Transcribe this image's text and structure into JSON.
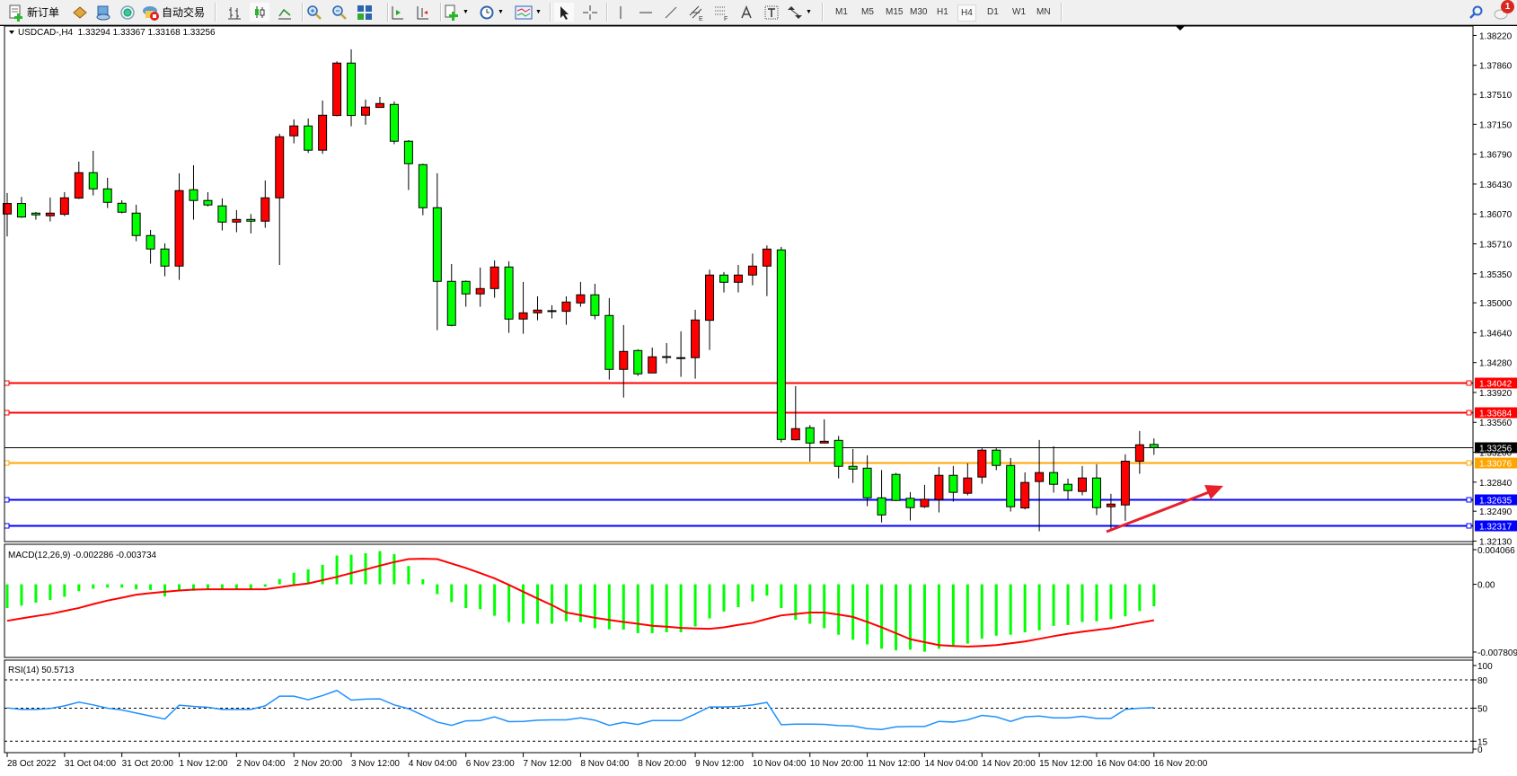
{
  "toolbar": {
    "new_order_label": "新订单",
    "auto_trading_label": "自动交易",
    "icons": [
      "new-order-icon",
      "market-watch-icon",
      "data-window-icon",
      "navigator-signal-icon",
      "auto-trading-icon",
      "bar-chart-icon",
      "candlestick-icon",
      "line-chart-icon",
      "zoom-in-icon",
      "zoom-out-icon",
      "tile-windows-icon",
      "auto-scroll-icon",
      "chart-shift-icon",
      "indicators-icon",
      "periods-icon",
      "templates-icon",
      "cursor-icon",
      "crosshair-icon",
      "vertical-line-icon",
      "horizontal-line-icon",
      "trendline-icon",
      "equidistant-channel-icon",
      "fibonacci-icon",
      "text-icon",
      "text-label-icon",
      "arrows-icon",
      "search-icon",
      "chat-icon"
    ],
    "timeframes": [
      "M1",
      "M5",
      "M15",
      "M30",
      "H1",
      "H4",
      "D1",
      "W1",
      "MN"
    ],
    "selected_timeframe": "H4",
    "notification_count": "1"
  },
  "chart": {
    "header": "USDCAD-,H4  1.33294 1.33367 1.33168 1.33256",
    "colors": {
      "bull": "#ff0000",
      "bear": "#00ff00",
      "outline": "#000000",
      "background": "#ffffff"
    }
  },
  "chart_data": [
    {
      "type": "candlestick",
      "symbol": "USDCAD-",
      "timeframe": "H4",
      "ohlc_fields": [
        "open",
        "high",
        "low",
        "close"
      ],
      "candles": [
        [
          1.36069,
          1.36322,
          1.35799,
          1.36196
        ],
        [
          1.36196,
          1.36275,
          1.36023,
          1.36033
        ],
        [
          1.3608,
          1.36095,
          1.36001,
          1.36059
        ],
        [
          1.36048,
          1.36268,
          1.35979,
          1.3608
        ],
        [
          1.36066,
          1.36333,
          1.36044,
          1.36264
        ],
        [
          1.36261,
          1.367,
          1.3625,
          1.36567
        ],
        [
          1.36567,
          1.3683,
          1.36293,
          1.36372
        ],
        [
          1.36372,
          1.36506,
          1.36142,
          1.3621
        ],
        [
          1.36199,
          1.36235,
          1.36077,
          1.36091
        ],
        [
          1.3608,
          1.36181,
          1.35741,
          1.3581
        ],
        [
          1.3581,
          1.35878,
          1.35471,
          1.35648
        ],
        [
          1.35648,
          1.35716,
          1.35319,
          1.35442
        ],
        [
          1.35442,
          1.3656,
          1.35276,
          1.36351
        ],
        [
          1.36362,
          1.36657,
          1.36001,
          1.36232
        ],
        [
          1.36232,
          1.36333,
          1.3616,
          1.36178
        ],
        [
          1.36167,
          1.36257,
          1.35871,
          1.35972
        ],
        [
          1.35972,
          1.36116,
          1.3585,
          1.36004
        ],
        [
          1.36004,
          1.36069,
          1.35835,
          1.35983
        ],
        [
          1.35983,
          1.36473,
          1.35904,
          1.36264
        ],
        [
          1.36264,
          1.37036,
          1.35456,
          1.37
        ],
        [
          1.37011,
          1.37209,
          1.3692,
          1.3713
        ],
        [
          1.3713,
          1.3722,
          1.36805,
          1.36838
        ],
        [
          1.36838,
          1.37436,
          1.36794,
          1.37259
        ],
        [
          1.37256,
          1.37908,
          1.37245,
          1.37887
        ],
        [
          1.37887,
          1.38053,
          1.37126,
          1.37256
        ],
        [
          1.37259,
          1.37447,
          1.37144,
          1.37357
        ],
        [
          1.37353,
          1.37479,
          1.37353,
          1.374
        ],
        [
          1.37389,
          1.37425,
          1.3691,
          1.36946
        ],
        [
          1.36946,
          1.3696,
          1.36358,
          1.36675
        ],
        [
          1.36664,
          1.36675,
          1.36055,
          1.36145
        ],
        [
          1.36145,
          1.3656,
          1.3467,
          1.35258
        ],
        [
          1.35258,
          1.35467,
          1.34717,
          1.34728
        ],
        [
          1.35258,
          1.35269,
          1.34952,
          1.35107
        ],
        [
          1.35107,
          1.35424,
          1.34952,
          1.35171
        ],
        [
          1.35171,
          1.35511,
          1.3506,
          1.35431
        ],
        [
          1.35431,
          1.355,
          1.34638,
          1.34804
        ],
        [
          1.34804,
          1.35251,
          1.34627,
          1.34879
        ],
        [
          1.34879,
          1.35078,
          1.34789,
          1.34912
        ],
        [
          1.34905,
          1.3497,
          1.34811,
          1.34905
        ],
        [
          1.34897,
          1.35078,
          1.34735,
          1.35009
        ],
        [
          1.34998,
          1.35251,
          1.34952,
          1.35096
        ],
        [
          1.35096,
          1.35229,
          1.348,
          1.34847
        ],
        [
          1.34847,
          1.35056,
          1.34075,
          1.34198
        ],
        [
          1.34198,
          1.34732,
          1.33859,
          1.34414
        ],
        [
          1.34425,
          1.3444,
          1.34119,
          1.34144
        ],
        [
          1.34155,
          1.34461,
          1.34155,
          1.34349
        ],
        [
          1.34346,
          1.34515,
          1.3427,
          1.34352
        ],
        [
          1.34339,
          1.34656,
          1.34108,
          1.34338
        ],
        [
          1.34339,
          1.34916,
          1.34086,
          1.34793
        ],
        [
          1.34789,
          1.35399,
          1.34432,
          1.35334
        ],
        [
          1.35334,
          1.3537,
          1.35125,
          1.35247
        ],
        [
          1.35247,
          1.35456,
          1.35125,
          1.35334
        ],
        [
          1.35334,
          1.35593,
          1.35211,
          1.35442
        ],
        [
          1.35442,
          1.35691,
          1.35081,
          1.35647
        ],
        [
          1.35637,
          1.35673,
          1.33318,
          1.33354
        ],
        [
          1.3335,
          1.33996,
          1.3334,
          1.33484
        ],
        [
          1.33495,
          1.33527,
          1.33087,
          1.33311
        ],
        [
          1.33311,
          1.33596,
          1.33311,
          1.33332
        ],
        [
          1.33343,
          1.33397,
          1.32885,
          1.3303
        ],
        [
          1.3303,
          1.33239,
          1.32831,
          1.32997
        ],
        [
          1.33008,
          1.33163,
          1.3255,
          1.32651
        ],
        [
          1.32651,
          1.32986,
          1.32355,
          1.32445
        ],
        [
          1.32933,
          1.32951,
          1.32612,
          1.32619
        ],
        [
          1.32645,
          1.3272,
          1.32378,
          1.32533
        ],
        [
          1.32544,
          1.32807,
          1.32529,
          1.32634
        ],
        [
          1.3263,
          1.33023,
          1.32475,
          1.32922
        ],
        [
          1.32922,
          1.33034,
          1.32605,
          1.32717
        ],
        [
          1.32706,
          1.33066,
          1.32681,
          1.3289
        ],
        [
          1.32901,
          1.33247,
          1.32821,
          1.33225
        ],
        [
          1.33225,
          1.33247,
          1.32984,
          1.33041
        ],
        [
          1.33041,
          1.33131,
          1.32486,
          1.32544
        ],
        [
          1.32529,
          1.32958,
          1.32511,
          1.32836
        ],
        [
          1.32847,
          1.33348,
          1.32248,
          1.32955
        ],
        [
          1.32955,
          1.33272,
          1.32713,
          1.32814
        ],
        [
          1.32814,
          1.32883,
          1.32627,
          1.32738
        ],
        [
          1.32728,
          1.33034,
          1.32681,
          1.3289
        ],
        [
          1.3289,
          1.33056,
          1.32443,
          1.32533
        ],
        [
          1.32544,
          1.32699,
          1.32266,
          1.32576
        ],
        [
          1.32565,
          1.33175,
          1.32374,
          1.33092
        ],
        [
          1.33092,
          1.33456,
          1.3294,
          1.3329
        ],
        [
          1.33294,
          1.33367,
          1.33168,
          1.33256
        ]
      ],
      "x_tick_labels": [
        "28 Oct 2022",
        "31 Oct 04:00",
        "31 Oct 20:00",
        "1 Nov 12:00",
        "2 Nov 04:00",
        "2 Nov 20:00",
        "3 Nov 12:00",
        "4 Nov 04:00",
        "6 Nov 23:00",
        "7 Nov 12:00",
        "8 Nov 04:00",
        "8 Nov 20:00",
        "9 Nov 12:00",
        "10 Nov 04:00",
        "10 Nov 20:00",
        "11 Nov 12:00",
        "14 Nov 04:00",
        "14 Nov 20:00",
        "15 Nov 12:00",
        "16 Nov 04:00",
        "16 Nov 20:00"
      ],
      "x_tick_every_n_candles": 4,
      "y_tick_labels": [
        "1.38220",
        "1.37860",
        "1.37510",
        "1.37150",
        "1.36790",
        "1.36430",
        "1.36070",
        "1.35710",
        "1.35350",
        "1.35000",
        "1.34640",
        "1.34280",
        "1.33920",
        "1.33560",
        "1.33200",
        "1.32840",
        "1.32490",
        "1.32130"
      ],
      "ylim": [
        1.32124,
        1.38333
      ],
      "horizontal_lines": [
        {
          "price": 1.34042,
          "label": "1.34042",
          "color": "#ff0000"
        },
        {
          "price": 1.33684,
          "label": "1.33684",
          "color": "#ff0000"
        },
        {
          "price": 1.33256,
          "label": "1.33256",
          "color": "#000000"
        },
        {
          "price": 1.33076,
          "label": "1.33076",
          "color": "#ffa500"
        },
        {
          "price": 1.32635,
          "label": "1.32635",
          "color": "#0000ff"
        },
        {
          "price": 1.32317,
          "label": "1.32317",
          "color": "#0000ff"
        }
      ]
    },
    {
      "type": "bar+line",
      "title": "MACD(12,26,9) -0.002286 -0.003734",
      "y_tick_labels": [
        "0.004066",
        "0.00",
        "-0.007809"
      ],
      "ylim": [
        -0.0076,
        0.00416
      ],
      "colors": {
        "main": "#00ff00",
        "signal": "#ff0000"
      },
      "main": [
        -0.00247,
        -0.00222,
        -0.00191,
        -0.00163,
        -0.0013,
        -0.00071,
        -0.00046,
        -0.00034,
        -0.00034,
        -0.00052,
        -0.00059,
        -0.00126,
        -0.00067,
        -0.00067,
        -0.0005,
        -0.0005,
        -0.0005,
        -0.0005,
        -0.00025,
        0.00055,
        0.0012,
        0.00155,
        0.00203,
        0.00299,
        0.00308,
        0.00323,
        0.00345,
        0.00314,
        0.00191,
        0.00052,
        -0.00102,
        -0.00185,
        -0.00247,
        -0.00258,
        -0.00327,
        -0.00392,
        -0.0041,
        -0.0041,
        -0.0041,
        -0.00385,
        -0.00394,
        -0.00456,
        -0.00468,
        -0.00471,
        -0.00508,
        -0.00508,
        -0.00499,
        -0.00499,
        -0.00438,
        -0.00354,
        -0.00283,
        -0.00237,
        -0.00178,
        -0.00117,
        -0.00247,
        -0.00369,
        -0.0041,
        -0.00456,
        -0.00524,
        -0.00576,
        -0.00625,
        -0.00669,
        -0.00687,
        -0.00678,
        -0.007,
        -0.00669,
        -0.00641,
        -0.00616,
        -0.00564,
        -0.00534,
        -0.00524,
        -0.00499,
        -0.00478,
        -0.00432,
        -0.00423,
        -0.00392,
        -0.00385,
        -0.00361,
        -0.00333,
        -0.00277,
        -0.002286
      ],
      "signal": [
        -0.00379,
        -0.00354,
        -0.0033,
        -0.00308,
        -0.00277,
        -0.00246,
        -0.00206,
        -0.00169,
        -0.00139,
        -0.00108,
        -0.00092,
        -0.00077,
        -0.00065,
        -0.00055,
        -0.00052,
        -0.00052,
        -0.00052,
        -0.00052,
        -0.00052,
        -0.00031,
        -9e-05,
        9e-05,
        0.00043,
        0.00077,
        0.00117,
        0.00154,
        0.00194,
        0.00231,
        0.00262,
        0.00265,
        0.00262,
        0.00216,
        0.00169,
        0.00117,
        0.00062,
        -6e-05,
        -0.00077,
        -0.00148,
        -0.00216,
        -0.00293,
        -0.0032,
        -0.00348,
        -0.0037,
        -0.00391,
        -0.0041,
        -0.00431,
        -0.0044,
        -0.00453,
        -0.00459,
        -0.00462,
        -0.00447,
        -0.00422,
        -0.004,
        -0.0036,
        -0.00323,
        -0.00308,
        -0.00293,
        -0.00293,
        -0.00314,
        -0.00339,
        -0.00391,
        -0.00447,
        -0.00508,
        -0.0057,
        -0.00601,
        -0.00632,
        -0.00641,
        -0.00647,
        -0.00641,
        -0.00632,
        -0.00613,
        -0.00594,
        -0.00567,
        -0.00539,
        -0.00514,
        -0.00493,
        -0.00474,
        -0.00456,
        -0.00428,
        -0.004,
        -0.003734
      ]
    },
    {
      "type": "line",
      "title": "RSI(14) 50.5713",
      "y_tick_labels": [
        "100",
        "80",
        "50",
        "15",
        "0"
      ],
      "levels": [
        80,
        50,
        15
      ],
      "ylim": [
        0,
        100
      ],
      "color": "#1e90ff",
      "values": [
        50.3,
        48.7,
        48.7,
        49.7,
        52.5,
        56.4,
        53.5,
        50.0,
        48.1,
        44.9,
        41.7,
        38.5,
        53.2,
        51.9,
        51.0,
        48.7,
        48.7,
        48.7,
        52.5,
        62.7,
        62.7,
        58.9,
        63.4,
        68.8,
        58.6,
        59.6,
        59.9,
        53.5,
        49.4,
        42.4,
        35.3,
        31.8,
        36.6,
        36.9,
        40.8,
        35.7,
        36.0,
        37.3,
        37.6,
        37.6,
        39.8,
        37.3,
        31.8,
        35.0,
        32.8,
        36.9,
        36.9,
        36.9,
        43.9,
        51.3,
        51.3,
        51.9,
        53.5,
        56.1,
        32.5,
        33.1,
        33.1,
        32.8,
        31.5,
        31.2,
        28.3,
        27.4,
        30.2,
        30.6,
        30.6,
        36.0,
        35.3,
        37.6,
        42.4,
        40.8,
        36.0,
        40.8,
        41.7,
        39.8,
        39.8,
        41.4,
        39.2,
        39.2,
        48.7,
        50.0,
        50.5713
      ]
    }
  ]
}
